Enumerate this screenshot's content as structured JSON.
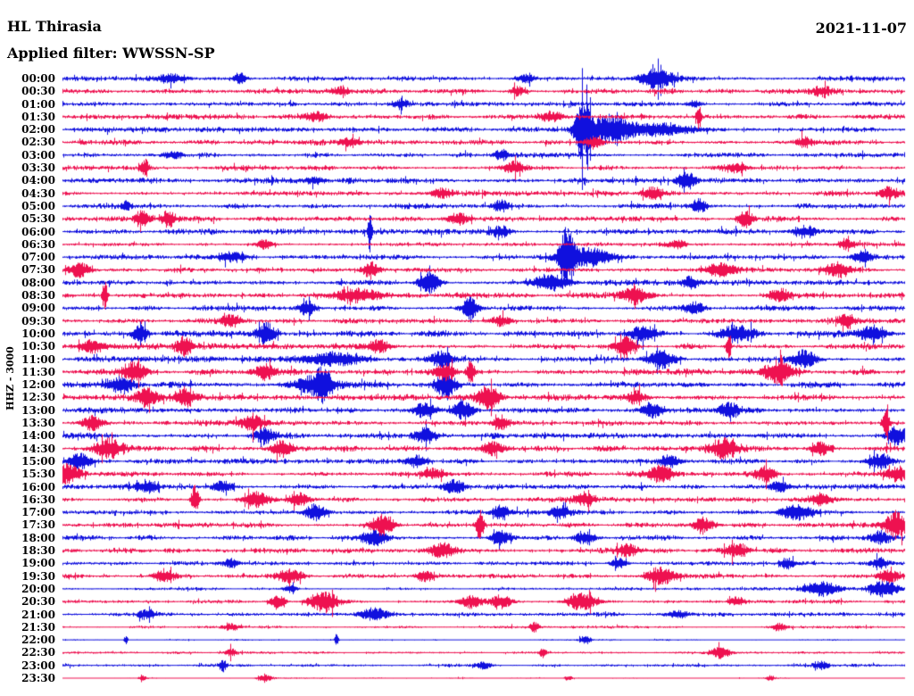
{
  "header": {
    "station": "HL Thirasia",
    "filter": "Applied filter: WWSSN-SP",
    "date": "2021-11-07"
  },
  "axis": {
    "channel_label": "HHZ - 3000"
  },
  "colors": {
    "trace_blue": "#1010de",
    "trace_red": "#ee1150",
    "background": "#ffffff",
    "text": "#000000"
  },
  "chart_data": {
    "type": "helicorder",
    "title": "HL Thirasia",
    "date": "2021-11-07",
    "filter": "WWSSN-SP",
    "channel": "HHZ",
    "scale": 3000,
    "minutes_per_row": 30,
    "legend_position": "none",
    "grid": false,
    "x_range_minutes": [
      0,
      30
    ],
    "row_color_cycle": [
      "blue",
      "red"
    ],
    "rows": [
      {
        "label": "00:00",
        "color": "blue",
        "noise": 2.4,
        "events": [
          [
            0.13,
            5,
            10
          ],
          [
            0.21,
            6,
            5
          ],
          [
            0.55,
            4,
            8
          ],
          [
            0.705,
            11,
            13
          ]
        ]
      },
      {
        "label": "00:30",
        "color": "red",
        "noise": 2.6,
        "events": [
          [
            0.33,
            4,
            8
          ],
          [
            0.54,
            5,
            6
          ],
          [
            0.9,
            4,
            8
          ]
        ]
      },
      {
        "label": "01:00",
        "color": "blue",
        "noise": 2.2,
        "events": [
          [
            0.4,
            4,
            6
          ],
          [
            0.75,
            4,
            6
          ]
        ]
      },
      {
        "label": "01:30",
        "color": "red",
        "noise": 2.5,
        "events": [
          [
            0.3,
            5,
            8
          ],
          [
            0.58,
            5,
            8
          ],
          [
            0.755,
            13,
            2
          ]
        ]
      },
      {
        "label": "02:00",
        "color": "blue",
        "noise": 2.5,
        "events": [
          [
            0.617,
            34,
            6
          ],
          [
            0.648,
            13,
            16
          ],
          [
            0.7,
            6,
            34
          ]
        ]
      },
      {
        "label": "02:30",
        "color": "red",
        "noise": 2.8,
        "events": [
          [
            0.34,
            5,
            8
          ],
          [
            0.63,
            5,
            8
          ],
          [
            0.88,
            5,
            6
          ]
        ]
      },
      {
        "label": "03:00",
        "color": "blue",
        "noise": 2.4,
        "events": [
          [
            0.13,
            4,
            8
          ],
          [
            0.52,
            5,
            6
          ]
        ]
      },
      {
        "label": "03:30",
        "color": "red",
        "noise": 2.5,
        "events": [
          [
            0.0975,
            10,
            3
          ],
          [
            0.535,
            6,
            8
          ],
          [
            0.8,
            5,
            8
          ]
        ]
      },
      {
        "label": "04:00",
        "color": "blue",
        "noise": 2.8,
        "events": [
          [
            0.3,
            4,
            8
          ],
          [
            0.74,
            11,
            7
          ]
        ]
      },
      {
        "label": "04:30",
        "color": "red",
        "noise": 2.8,
        "events": [
          [
            0.45,
            5,
            8
          ],
          [
            0.7,
            5,
            8
          ],
          [
            0.98,
            6,
            8
          ]
        ]
      },
      {
        "label": "05:00",
        "color": "blue",
        "noise": 2.8,
        "events": [
          [
            0.075,
            6,
            3
          ],
          [
            0.52,
            6,
            6
          ],
          [
            0.755,
            7,
            6
          ]
        ]
      },
      {
        "label": "05:30",
        "color": "red",
        "noise": 2.8,
        "events": [
          [
            0.095,
            8,
            6
          ],
          [
            0.125,
            8,
            6
          ],
          [
            0.47,
            6,
            8
          ],
          [
            0.81,
            9,
            6
          ]
        ]
      },
      {
        "label": "06:00",
        "color": "blue",
        "noise": 2.8,
        "events": [
          [
            0.3645,
            22,
            1.5
          ],
          [
            0.52,
            5,
            8
          ],
          [
            0.88,
            5,
            8
          ]
        ]
      },
      {
        "label": "06:30",
        "color": "red",
        "noise": 2.2,
        "events": [
          [
            0.24,
            5,
            6
          ],
          [
            0.73,
            5,
            6
          ],
          [
            0.93,
            5,
            6
          ]
        ]
      },
      {
        "label": "07:00",
        "color": "blue",
        "noise": 2.4,
        "events": [
          [
            0.2,
            5,
            10
          ],
          [
            0.598,
            30,
            6
          ],
          [
            0.625,
            10,
            18
          ],
          [
            0.95,
            6,
            8
          ]
        ]
      },
      {
        "label": "07:30",
        "color": "red",
        "noise": 2.5,
        "events": [
          [
            0.02,
            8,
            8
          ],
          [
            0.365,
            8,
            6
          ],
          [
            0.78,
            7,
            12
          ],
          [
            0.92,
            7,
            10
          ]
        ]
      },
      {
        "label": "08:00",
        "color": "blue",
        "noise": 2.8,
        "events": [
          [
            0.435,
            12,
            8
          ],
          [
            0.58,
            8,
            14
          ],
          [
            0.745,
            6,
            6
          ]
        ]
      },
      {
        "label": "08:30",
        "color": "red",
        "noise": 2.8,
        "events": [
          [
            0.05,
            15,
            2
          ],
          [
            0.35,
            7,
            18
          ],
          [
            0.68,
            8,
            10
          ],
          [
            0.85,
            7,
            8
          ]
        ]
      },
      {
        "label": "09:00",
        "color": "blue",
        "noise": 2.5,
        "events": [
          [
            0.29,
            8,
            6
          ],
          [
            0.484,
            12,
            6
          ],
          [
            0.75,
            5,
            8
          ]
        ]
      },
      {
        "label": "09:30",
        "color": "red",
        "noise": 2.5,
        "events": [
          [
            0.2,
            6,
            8
          ],
          [
            0.52,
            5,
            8
          ],
          [
            0.93,
            8,
            6
          ]
        ]
      },
      {
        "label": "10:00",
        "color": "blue",
        "noise": 3.0,
        "events": [
          [
            0.092,
            9,
            6
          ],
          [
            0.2415,
            11,
            7
          ],
          [
            0.69,
            8,
            10
          ],
          [
            0.8,
            8,
            12
          ],
          [
            0.96,
            8,
            12
          ]
        ]
      },
      {
        "label": "10:30",
        "color": "red",
        "noise": 3.0,
        "events": [
          [
            0.035,
            7,
            10
          ],
          [
            0.145,
            10,
            6
          ],
          [
            0.375,
            6,
            8
          ],
          [
            0.667,
            10,
            8
          ],
          [
            0.79,
            13,
            2
          ]
        ]
      },
      {
        "label": "11:00",
        "color": "blue",
        "noise": 3.0,
        "events": [
          [
            0.32,
            7,
            22
          ],
          [
            0.45,
            8,
            9
          ],
          [
            0.71,
            8,
            11
          ],
          [
            0.88,
            9,
            9
          ]
        ]
      },
      {
        "label": "11:30",
        "color": "red",
        "noise": 3.0,
        "events": [
          [
            0.085,
            10,
            9
          ],
          [
            0.24,
            8,
            8
          ],
          [
            0.455,
            8,
            8
          ],
          [
            0.484,
            13,
            3
          ],
          [
            0.85,
            12,
            11
          ]
        ]
      },
      {
        "label": "12:00",
        "color": "blue",
        "noise": 3.2,
        "events": [
          [
            0.07,
            8,
            10
          ],
          [
            0.3,
            9,
            16
          ],
          [
            0.31,
            12,
            6
          ],
          [
            0.455,
            12,
            8
          ]
        ]
      },
      {
        "label": "12:30",
        "color": "red",
        "noise": 3.0,
        "events": [
          [
            0.1,
            10,
            8
          ],
          [
            0.145,
            9,
            8
          ],
          [
            0.505,
            13,
            9
          ],
          [
            0.68,
            6,
            7
          ]
        ]
      },
      {
        "label": "13:00",
        "color": "blue",
        "noise": 2.8,
        "events": [
          [
            0.43,
            8,
            8
          ],
          [
            0.475,
            9,
            8
          ],
          [
            0.7,
            8,
            8
          ],
          [
            0.79,
            8,
            8
          ]
        ]
      },
      {
        "label": "13:30",
        "color": "red",
        "noise": 2.8,
        "events": [
          [
            0.035,
            8,
            8
          ],
          [
            0.225,
            8,
            8
          ],
          [
            0.52,
            8,
            6
          ],
          [
            0.977,
            13,
            3
          ]
        ]
      },
      {
        "label": "14:00",
        "color": "blue",
        "noise": 3.0,
        "events": [
          [
            0.24,
            7,
            8
          ],
          [
            0.43,
            8,
            8
          ],
          [
            0.99,
            10,
            8
          ]
        ]
      },
      {
        "label": "14:30",
        "color": "red",
        "noise": 3.0,
        "events": [
          [
            0.055,
            9,
            10
          ],
          [
            0.26,
            8,
            8
          ],
          [
            0.51,
            7,
            8
          ],
          [
            0.785,
            10,
            10
          ],
          [
            0.9,
            7,
            8
          ]
        ]
      },
      {
        "label": "15:00",
        "color": "blue",
        "noise": 2.5,
        "events": [
          [
            0.02,
            8,
            9
          ],
          [
            0.42,
            6,
            8
          ],
          [
            0.72,
            6,
            8
          ],
          [
            0.97,
            8,
            9
          ]
        ]
      },
      {
        "label": "15:30",
        "color": "red",
        "noise": 2.5,
        "events": [
          [
            0.005,
            10,
            10
          ],
          [
            0.44,
            6,
            8
          ],
          [
            0.71,
            8,
            10
          ],
          [
            0.835,
            8,
            8
          ],
          [
            0.99,
            8,
            8
          ]
        ]
      },
      {
        "label": "16:00",
        "color": "blue",
        "noise": 2.5,
        "events": [
          [
            0.1,
            6,
            8
          ],
          [
            0.19,
            6,
            8
          ],
          [
            0.465,
            8,
            8
          ],
          [
            0.85,
            6,
            8
          ]
        ]
      },
      {
        "label": "16:30",
        "color": "red",
        "noise": 2.5,
        "events": [
          [
            0.157,
            16,
            3
          ],
          [
            0.23,
            8,
            10
          ],
          [
            0.28,
            7,
            8
          ],
          [
            0.62,
            6,
            8
          ],
          [
            0.9,
            6,
            8
          ]
        ]
      },
      {
        "label": "17:00",
        "color": "blue",
        "noise": 2.5,
        "events": [
          [
            0.3,
            9,
            8
          ],
          [
            0.52,
            8,
            6
          ],
          [
            0.59,
            7,
            8
          ],
          [
            0.87,
            9,
            12
          ]
        ]
      },
      {
        "label": "17:30",
        "color": "red",
        "noise": 2.5,
        "events": [
          [
            0.38,
            10,
            9
          ],
          [
            0.495,
            16,
            3
          ],
          [
            0.76,
            7,
            8
          ],
          [
            0.99,
            12,
            10
          ]
        ]
      },
      {
        "label": "18:00",
        "color": "blue",
        "noise": 2.5,
        "events": [
          [
            0.37,
            9,
            10
          ],
          [
            0.52,
            8,
            8
          ],
          [
            0.62,
            7,
            8
          ],
          [
            0.97,
            6,
            8
          ]
        ]
      },
      {
        "label": "18:30",
        "color": "red",
        "noise": 2.5,
        "events": [
          [
            0.45,
            8,
            10
          ],
          [
            0.67,
            6,
            8
          ],
          [
            0.8,
            7,
            8
          ]
        ]
      },
      {
        "label": "19:00",
        "color": "blue",
        "noise": 2.0,
        "events": [
          [
            0.2,
            5,
            6
          ],
          [
            0.66,
            6,
            6
          ],
          [
            0.86,
            5,
            6
          ],
          [
            0.97,
            6,
            6
          ]
        ]
      },
      {
        "label": "19:30",
        "color": "red",
        "noise": 2.2,
        "events": [
          [
            0.12,
            6,
            8
          ],
          [
            0.27,
            7,
            10
          ],
          [
            0.43,
            6,
            6
          ],
          [
            0.71,
            9,
            11
          ],
          [
            0.98,
            7,
            8
          ]
        ]
      },
      {
        "label": "20:00",
        "color": "blue",
        "noise": 1.5,
        "events": [
          [
            0.27,
            4,
            6
          ],
          [
            0.9,
            8,
            13
          ],
          [
            0.975,
            9,
            11
          ]
        ]
      },
      {
        "label": "20:30",
        "color": "red",
        "noise": 1.8,
        "events": [
          [
            0.255,
            7,
            6
          ],
          [
            0.31,
            10,
            11
          ],
          [
            0.485,
            7,
            8
          ],
          [
            0.52,
            7,
            8
          ],
          [
            0.615,
            9,
            11
          ],
          [
            0.8,
            5,
            6
          ]
        ]
      },
      {
        "label": "21:00",
        "color": "blue",
        "noise": 2.2,
        "events": [
          [
            0.1,
            5,
            6
          ],
          [
            0.37,
            7,
            10
          ],
          [
            0.73,
            4,
            8
          ]
        ]
      },
      {
        "label": "21:30",
        "color": "red",
        "noise": 1.5,
        "events": [
          [
            0.2,
            4,
            6
          ],
          [
            0.56,
            5,
            4
          ],
          [
            0.85,
            4,
            6
          ]
        ]
      },
      {
        "label": "22:00",
        "color": "blue",
        "noise": 0.8,
        "events": [
          [
            0.075,
            5,
            1.5
          ],
          [
            0.325,
            6,
            1.5
          ],
          [
            0.62,
            5,
            4
          ]
        ]
      },
      {
        "label": "22:30",
        "color": "red",
        "noise": 1.2,
        "events": [
          [
            0.2,
            4,
            4
          ],
          [
            0.57,
            5,
            3
          ],
          [
            0.78,
            6,
            8
          ]
        ]
      },
      {
        "label": "23:00",
        "color": "blue",
        "noise": 1.6,
        "events": [
          [
            0.19,
            6,
            3
          ],
          [
            0.5,
            4,
            6
          ],
          [
            0.9,
            4,
            6
          ]
        ]
      },
      {
        "label": "23:30",
        "color": "red",
        "noise": 0.7,
        "events": [
          [
            0.095,
            3,
            3
          ],
          [
            0.24,
            4,
            6
          ],
          [
            0.6,
            3,
            3
          ],
          [
            0.84,
            3,
            3
          ]
        ]
      }
    ]
  }
}
